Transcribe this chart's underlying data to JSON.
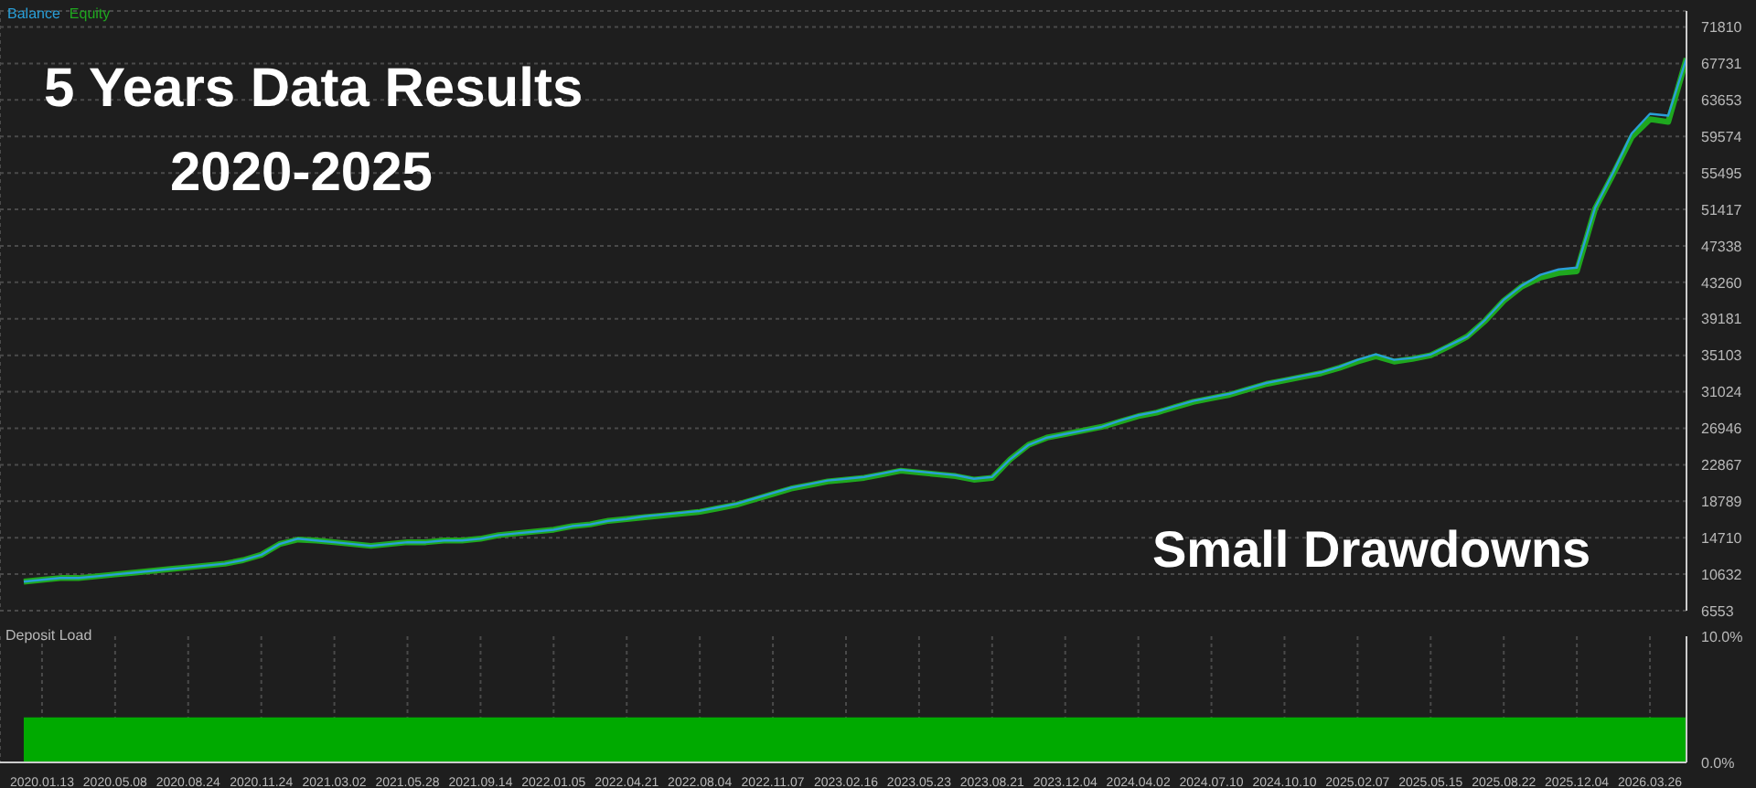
{
  "chart_data": [
    {
      "type": "line",
      "title": "5 Years Data Results",
      "subtitle": "2020-2025",
      "annotations": [
        "Small Drawdowns"
      ],
      "categories": [
        null,
        "2020.01.13",
        null,
        null,
        null,
        "2020.05.08",
        null,
        null,
        null,
        "2020.08.24",
        null,
        null,
        null,
        "2020.11.24",
        null,
        null,
        null,
        "2021.03.02",
        null,
        null,
        null,
        "2021.05.28",
        null,
        null,
        null,
        "2021.09.14",
        null,
        null,
        null,
        "2022.01.05",
        null,
        null,
        null,
        "2022.04.21",
        null,
        null,
        null,
        "2022.08.04",
        null,
        null,
        null,
        "2022.11.07",
        null,
        null,
        null,
        "2023.02.16",
        null,
        null,
        null,
        "2023.05.23",
        null,
        null,
        null,
        "2023.08.21",
        null,
        null,
        null,
        "2023.12.04",
        null,
        null,
        null,
        "2024.04.02",
        null,
        null,
        null,
        "2024.07.10",
        null,
        null,
        null,
        "2024.10.10",
        null,
        null,
        null,
        "2025.02.07",
        null,
        null,
        null,
        "2025.05.15",
        null,
        null,
        null,
        "2025.08.22",
        null,
        null,
        null,
        "2025.12.04",
        null,
        null,
        null,
        "2026.03.26",
        null,
        null
      ],
      "series": [
        {
          "name": "Equity",
          "color": "#1fa81f",
          "values": [
            9800,
            10000,
            10200,
            10200,
            10400,
            10600,
            10800,
            11000,
            11200,
            11400,
            11600,
            11800,
            12200,
            12800,
            14000,
            14500,
            14400,
            14200,
            14000,
            13800,
            14000,
            14200,
            14200,
            14400,
            14400,
            14600,
            15000,
            15200,
            15400,
            15600,
            16000,
            16200,
            16600,
            16800,
            17000,
            17200,
            17400,
            17600,
            18000,
            18400,
            19000,
            19600,
            20200,
            20600,
            21000,
            21200,
            21400,
            21800,
            22200,
            22000,
            21800,
            21600,
            21200,
            21400,
            23500,
            25100,
            25900,
            26300,
            26700,
            27100,
            27700,
            28300,
            28700,
            29300,
            29900,
            30300,
            30700,
            31300,
            31900,
            32300,
            32700,
            33100,
            33700,
            34400,
            35000,
            34400,
            34700,
            35100,
            36100,
            37200,
            39000,
            41200,
            42800,
            43800,
            44300,
            44500,
            51500,
            55400,
            59500,
            61500,
            61200,
            68300
          ]
        },
        {
          "name": "Balance",
          "color": "#2a9fd8",
          "values": [
            9800,
            10000,
            10200,
            10200,
            10400,
            10600,
            10800,
            11000,
            11200,
            11400,
            11600,
            11800,
            12200,
            12800,
            14000,
            14600,
            14400,
            14200,
            14000,
            13800,
            14000,
            14200,
            14200,
            14400,
            14400,
            14600,
            15000,
            15200,
            15400,
            15600,
            16000,
            16200,
            16600,
            16800,
            17100,
            17300,
            17500,
            17700,
            18100,
            18500,
            19100,
            19700,
            20300,
            20700,
            21100,
            21300,
            21500,
            21900,
            22300,
            22100,
            21900,
            21700,
            21300,
            21500,
            23500,
            25100,
            25900,
            26300,
            26700,
            27100,
            27800,
            28400,
            28800,
            29400,
            30000,
            30400,
            30800,
            31400,
            32000,
            32400,
            32800,
            33200,
            33800,
            34600,
            35200,
            34600,
            34800,
            35200,
            36200,
            37200,
            39100,
            41300,
            42900,
            44100,
            44700,
            44900,
            51600,
            55600,
            59900,
            62100,
            61900,
            68300
          ]
        }
      ],
      "ylim": [
        6553,
        73600
      ],
      "yticks": [
        6553,
        10632,
        14710,
        18789,
        22867,
        26946,
        31024,
        35103,
        39181,
        43260,
        47338,
        51417,
        55495,
        59574,
        63653,
        67731,
        71810
      ],
      "grid": true,
      "legend": "top left",
      "tick_labels": "y",
      "line_style": "solid",
      "marker": "none"
    },
    {
      "type": "area",
      "title": "Deposit Load",
      "categories": [
        null,
        "2020.01.13",
        null,
        null,
        null,
        "2020.05.08",
        null,
        null,
        null,
        "2020.08.24",
        null,
        null,
        null,
        "2020.11.24",
        null,
        null,
        null,
        "2021.03.02",
        null,
        null,
        null,
        "2021.05.28",
        null,
        null,
        null,
        "2021.09.14",
        null,
        null,
        null,
        "2022.01.05",
        null,
        null,
        null,
        "2022.04.21",
        null,
        null,
        null,
        "2022.08.04",
        null,
        null,
        null,
        "2022.11.07",
        null,
        null,
        null,
        "2023.02.16",
        null,
        null,
        null,
        "2023.05.23",
        null,
        null,
        null,
        "2023.08.21",
        null,
        null,
        null,
        "2023.12.04",
        null,
        null,
        null,
        "2024.04.02",
        null,
        null,
        null,
        "2024.07.10",
        null,
        null,
        null,
        "2024.10.10",
        null,
        null,
        null,
        "2025.02.07",
        null,
        null,
        null,
        "2025.05.15",
        null,
        null,
        null,
        "2025.08.22",
        null,
        null,
        null,
        "2025.12.04",
        null,
        null,
        null,
        "2026.03.26",
        null,
        null
      ],
      "series": [
        {
          "color": "#00aa00",
          "values": [
            3.5,
            3.5,
            3.5,
            3.5,
            3.5,
            3.5,
            3.5,
            3.5,
            3.5,
            3.5,
            3.5,
            3.5,
            3.5,
            3.5,
            3.5,
            3.5,
            3.5,
            3.5,
            3.5,
            3.5,
            3.5,
            3.5,
            3.5,
            3.5,
            3.5,
            3.5,
            3.5,
            3.5,
            3.5,
            3.5,
            3.5,
            3.5,
            3.5,
            3.5,
            3.5,
            3.5,
            3.5,
            3.5,
            3.5,
            3.5,
            3.5,
            3.5,
            3.5,
            3.5,
            3.5,
            3.5,
            3.5,
            3.5,
            3.5,
            3.5,
            3.5,
            3.5,
            3.5,
            3.5,
            3.5,
            3.5,
            3.5,
            3.5,
            3.5,
            3.5,
            3.5,
            3.5,
            3.5,
            3.5,
            3.5,
            3.5,
            3.5,
            3.5,
            3.5,
            3.5,
            3.5,
            3.5,
            3.5,
            3.5,
            3.5,
            3.5,
            3.5,
            3.5,
            3.5,
            3.5,
            3.5,
            3.5,
            3.5,
            3.5,
            3.5,
            3.5,
            3.5,
            3.5,
            3.5,
            3.5,
            3.5,
            3.5
          ]
        }
      ],
      "ylim": [
        0,
        10
      ],
      "yticks": [
        {
          "value": 0,
          "label": "0.0%"
        },
        {
          "value": 10,
          "label": "10.0%"
        }
      ],
      "grid": "x"
    }
  ]
}
